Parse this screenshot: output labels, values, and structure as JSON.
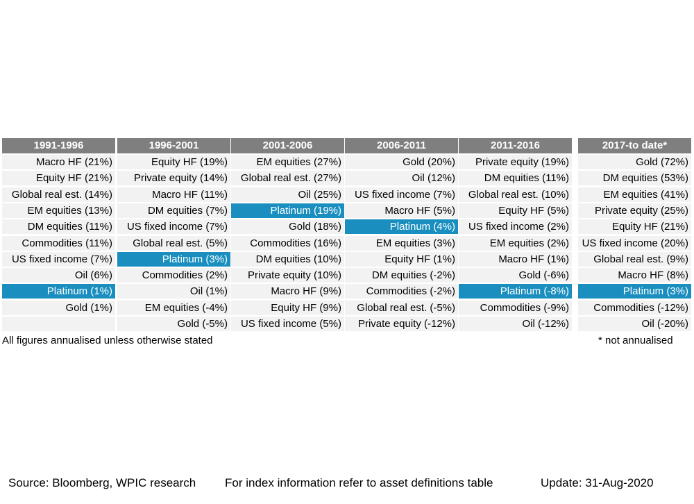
{
  "chart_data": {
    "type": "table",
    "columns": [
      {
        "header": "1991-1996",
        "cells": [
          {
            "label": "Macro HF (21%)",
            "value": 21
          },
          {
            "label": "Equity HF (21%)",
            "value": 21
          },
          {
            "label": "Global real est. (14%)",
            "value": 14
          },
          {
            "label": "EM equities (13%)",
            "value": 13
          },
          {
            "label": "DM equities (11%)",
            "value": 11
          },
          {
            "label": "Commodities (11%)",
            "value": 11
          },
          {
            "label": "US fixed income (7%)",
            "value": 7
          },
          {
            "label": "Oil (6%)",
            "value": 6
          },
          {
            "label": "Platinum (1%)",
            "value": 1,
            "highlight": true
          },
          {
            "label": "Gold (1%)",
            "value": 1
          },
          {
            "label": "",
            "value": null
          }
        ]
      },
      {
        "header": "1996-2001",
        "cells": [
          {
            "label": "Equity HF (19%)",
            "value": 19
          },
          {
            "label": "Private equity (14%)",
            "value": 14
          },
          {
            "label": "Macro HF (11%)",
            "value": 11
          },
          {
            "label": "DM equities (7%)",
            "value": 7
          },
          {
            "label": "US fixed income (7%)",
            "value": 7
          },
          {
            "label": "Global real est. (5%)",
            "value": 5
          },
          {
            "label": "Platinum (3%)",
            "value": 3,
            "highlight": true
          },
          {
            "label": "Commodities (2%)",
            "value": 2
          },
          {
            "label": "Oil (1%)",
            "value": 1
          },
          {
            "label": "EM equities (-4%)",
            "value": -4
          },
          {
            "label": "Gold (-5%)",
            "value": -5
          }
        ]
      },
      {
        "header": "2001-2006",
        "cells": [
          {
            "label": "EM equities (27%)",
            "value": 27
          },
          {
            "label": "Global real est. (27%)",
            "value": 27
          },
          {
            "label": "Oil (25%)",
            "value": 25
          },
          {
            "label": "Platinum (19%)",
            "value": 19,
            "highlight": true
          },
          {
            "label": "Gold (18%)",
            "value": 18
          },
          {
            "label": "Commodities (16%)",
            "value": 16
          },
          {
            "label": "DM equities (10%)",
            "value": 10
          },
          {
            "label": "Private equity (10%)",
            "value": 10
          },
          {
            "label": "Macro HF (9%)",
            "value": 9
          },
          {
            "label": "Equity HF (9%)",
            "value": 9
          },
          {
            "label": "US fixed income (5%)",
            "value": 5
          }
        ]
      },
      {
        "header": "2006-2011",
        "cells": [
          {
            "label": "Gold (20%)",
            "value": 20
          },
          {
            "label": "Oil (12%)",
            "value": 12
          },
          {
            "label": "US fixed income (7%)",
            "value": 7
          },
          {
            "label": "Macro HF (5%)",
            "value": 5
          },
          {
            "label": "Platinum (4%)",
            "value": 4,
            "highlight": true
          },
          {
            "label": "EM equities (3%)",
            "value": 3
          },
          {
            "label": "Equity HF (1%)",
            "value": 1
          },
          {
            "label": "DM equities (-2%)",
            "value": -2
          },
          {
            "label": "Commodities (-2%)",
            "value": -2
          },
          {
            "label": "Global real est. (-5%)",
            "value": -5
          },
          {
            "label": "Private equity (-12%)",
            "value": -12
          }
        ]
      },
      {
        "header": "2011-2016",
        "cells": [
          {
            "label": "Private equity (19%)",
            "value": 19
          },
          {
            "label": "DM equities (11%)",
            "value": 11
          },
          {
            "label": "Global real est. (10%)",
            "value": 10
          },
          {
            "label": "Equity HF (5%)",
            "value": 5
          },
          {
            "label": "US fixed income (2%)",
            "value": 2
          },
          {
            "label": "EM equities (2%)",
            "value": 2
          },
          {
            "label": "Macro HF (1%)",
            "value": 1
          },
          {
            "label": "Gold (-6%)",
            "value": -6
          },
          {
            "label": "Platinum (-8%)",
            "value": -8,
            "highlight": true
          },
          {
            "label": "Commodities (-9%)",
            "value": -9
          },
          {
            "label": "Oil (-12%)",
            "value": -12
          }
        ]
      },
      {
        "header": "2017-to date*",
        "cells": [
          {
            "label": "Gold (72%)",
            "value": 72
          },
          {
            "label": "DM equities (53%)",
            "value": 53
          },
          {
            "label": "EM equities (41%)",
            "value": 41
          },
          {
            "label": "Private equity (25%)",
            "value": 25
          },
          {
            "label": "Equity HF (21%)",
            "value": 21
          },
          {
            "label": "US fixed income (20%)",
            "value": 20
          },
          {
            "label": "Global real est. (9%)",
            "value": 9
          },
          {
            "label": "Macro HF (8%)",
            "value": 8
          },
          {
            "label": "Platinum (3%)",
            "value": 3,
            "highlight": true
          },
          {
            "label": "Commodities (-12%)",
            "value": -12
          },
          {
            "label": "Oil (-20%)",
            "value": -20
          }
        ]
      }
    ],
    "highlight_color": "#1a8fbf",
    "header_color": "#7f7f7f",
    "cell_color": "#f2f2f2"
  },
  "notes": {
    "left": "All figures annualised unless otherwise stated",
    "right": "* not annualised"
  },
  "footer": {
    "source": "Source: Bloomberg, WPIC research",
    "index_info": "For index information refer to asset definitions table",
    "update": "Update: 31-Aug-2020"
  }
}
